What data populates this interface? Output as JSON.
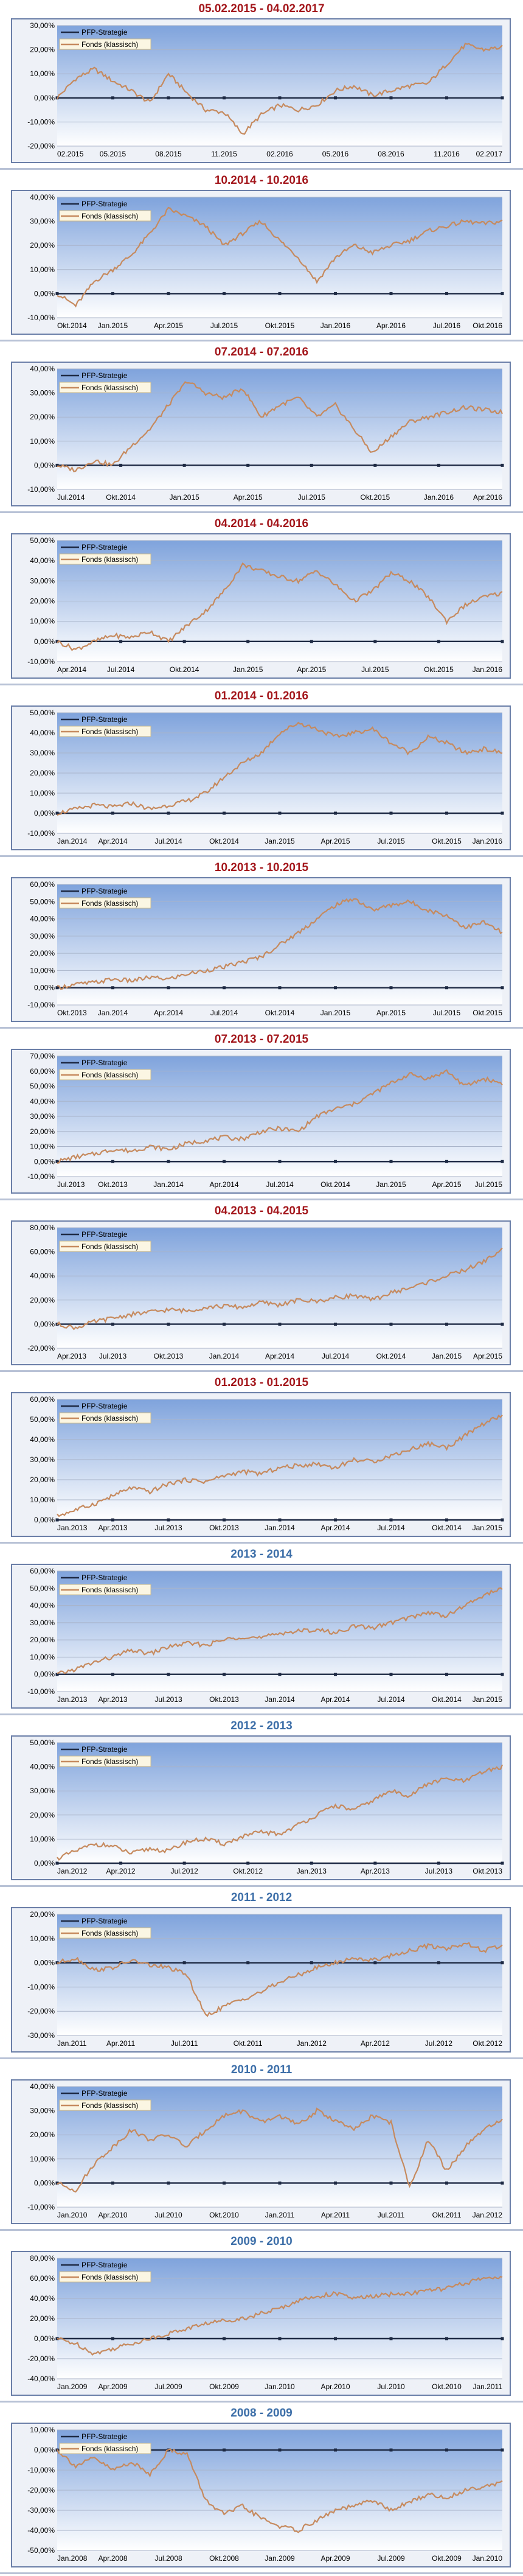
{
  "colors": {
    "title_red": "#a3161b",
    "title_blue": "#3c6ea8",
    "strategy_line": "#1e2a44",
    "fund_line": "#c68a5e",
    "axis_line": "#000000",
    "plot_top": "#7fa3dc",
    "plot_bottom": "#ffffff",
    "legend_bg": "#fbf6e3"
  },
  "chart_data": [
    {
      "type": "line",
      "title": "05.02.2015 - 04.02.2017",
      "title_color": "red",
      "x_ticks": [
        "02.2015",
        "05.2015",
        "08.2015",
        "11.2015",
        "02.2016",
        "05.2016",
        "08.2016",
        "11.2016",
        "02.2017"
      ],
      "y_ticks": [
        "-20,00%",
        "-10,00%",
        "0,00%",
        "10,00%",
        "20,00%",
        "30,00%"
      ],
      "ylim": [
        -20,
        30
      ],
      "grid": true,
      "legend_position": "top-left",
      "series": [
        {
          "name": "PFP-Strategie",
          "values": [
            0,
            0,
            0,
            0,
            0,
            0,
            0,
            0,
            0
          ]
        },
        {
          "name": "Fonds (klassisch)",
          "values": [
            0,
            8,
            12,
            7,
            3,
            -2,
            10,
            2,
            -5,
            -6,
            -15,
            -7,
            -3,
            -5,
            -3,
            3,
            5,
            1,
            3,
            5,
            6,
            14,
            22,
            20,
            21
          ]
        }
      ]
    },
    {
      "type": "line",
      "title": "10.2014 - 10.2016",
      "title_color": "red",
      "x_ticks": [
        "Okt.2014",
        "Jan.2015",
        "Apr.2015",
        "Jul.2015",
        "Okt.2015",
        "Jan.2016",
        "Apr.2016",
        "Jul.2016",
        "Okt.2016"
      ],
      "y_ticks": [
        "-10,00%",
        "0,00%",
        "10,00%",
        "20,00%",
        "30,00%",
        "40,00%"
      ],
      "ylim": [
        -10,
        40
      ],
      "grid": true,
      "legend_position": "top-left",
      "series": [
        {
          "name": "PFP-Strategie",
          "values": [
            0,
            0,
            0,
            0,
            0,
            0,
            0,
            0,
            0
          ]
        },
        {
          "name": "Fonds (klassisch)",
          "values": [
            0,
            -5,
            5,
            10,
            16,
            25,
            35,
            32,
            28,
            20,
            25,
            30,
            22,
            15,
            5,
            15,
            20,
            17,
            20,
            22,
            26,
            28,
            30,
            29,
            30
          ]
        }
      ]
    },
    {
      "type": "line",
      "title": "07.2014 - 07.2016",
      "title_color": "red",
      "x_ticks": [
        "Jul.2014",
        "Okt.2014",
        "Jan.2015",
        "Apr.2015",
        "Jul.2015",
        "Okt.2015",
        "Jan.2016",
        "Apr.2016"
      ],
      "y_ticks": [
        "-10,00%",
        "0,00%",
        "10,00%",
        "20,00%",
        "30,00%",
        "40,00%"
      ],
      "ylim": [
        -10,
        40
      ],
      "grid": true,
      "legend_position": "top-left",
      "series": [
        {
          "name": "PFP-Strategie",
          "values": [
            0,
            0,
            0,
            0,
            0,
            0,
            0,
            0
          ]
        },
        {
          "name": "Fonds (klassisch)",
          "values": [
            0,
            -2,
            2,
            0,
            8,
            15,
            25,
            35,
            30,
            28,
            32,
            20,
            25,
            28,
            20,
            25,
            15,
            5,
            12,
            18,
            20,
            22,
            24,
            23,
            22
          ]
        }
      ]
    },
    {
      "type": "line",
      "title": "04.2014 - 04.2016",
      "title_color": "red",
      "x_ticks": [
        "Apr.2014",
        "Jul.2014",
        "Okt.2014",
        "Jan.2015",
        "Apr.2015",
        "Jul.2015",
        "Okt.2015",
        "Jan.2016"
      ],
      "y_ticks": [
        "-10,00%",
        "0,00%",
        "10,00%",
        "20,00%",
        "30,00%",
        "40,00%",
        "50,00%"
      ],
      "ylim": [
        -10,
        50
      ],
      "grid": true,
      "legend_position": "top-left",
      "series": [
        {
          "name": "PFP-Strategie",
          "values": [
            0,
            0,
            0,
            0,
            0,
            0,
            0,
            0
          ]
        },
        {
          "name": "Fonds (klassisch)",
          "values": [
            0,
            -4,
            0,
            3,
            2,
            5,
            0,
            8,
            15,
            25,
            38,
            35,
            32,
            30,
            35,
            28,
            20,
            25,
            34,
            30,
            22,
            10,
            18,
            22,
            24
          ]
        }
      ]
    },
    {
      "type": "line",
      "title": "01.2014 - 01.2016",
      "title_color": "red",
      "x_ticks": [
        "Jan.2014",
        "Apr.2014",
        "Jul.2014",
        "Okt.2014",
        "Jan.2015",
        "Apr.2015",
        "Jul.2015",
        "Okt.2015",
        "Jan.2016"
      ],
      "y_ticks": [
        "-10,00%",
        "0,00%",
        "10,00%",
        "20,00%",
        "30,00%",
        "40,00%",
        "50,00%"
      ],
      "ylim": [
        -10,
        50
      ],
      "grid": true,
      "legend_position": "top-left",
      "series": [
        {
          "name": "PFP-Strategie",
          "values": [
            0,
            0,
            0,
            0,
            0,
            0,
            0,
            0,
            0
          ]
        },
        {
          "name": "Fonds (klassisch)",
          "values": [
            0,
            2,
            4,
            3,
            5,
            2,
            4,
            6,
            10,
            18,
            25,
            30,
            40,
            45,
            42,
            38,
            40,
            42,
            35,
            30,
            38,
            35,
            30,
            32,
            30
          ]
        }
      ]
    },
    {
      "type": "line",
      "title": "10.2013 - 10.2015",
      "title_color": "red",
      "x_ticks": [
        "Okt.2013",
        "Jan.2014",
        "Apr.2014",
        "Jul.2014",
        "Okt.2014",
        "Jan.2015",
        "Apr.2015",
        "Jul.2015",
        "Okt.2015"
      ],
      "y_ticks": [
        "-10,00%",
        "0,00%",
        "10,00%",
        "20,00%",
        "30,00%",
        "40,00%",
        "50,00%",
        "60,00%"
      ],
      "ylim": [
        -10,
        60
      ],
      "grid": true,
      "legend_position": "top-left",
      "series": [
        {
          "name": "PFP-Strategie",
          "values": [
            0,
            0,
            0,
            0,
            0,
            0,
            0,
            0,
            0
          ]
        },
        {
          "name": "Fonds (klassisch)",
          "values": [
            0,
            2,
            3,
            5,
            4,
            6,
            5,
            8,
            10,
            12,
            15,
            18,
            25,
            32,
            40,
            48,
            52,
            45,
            48,
            50,
            45,
            42,
            35,
            38,
            32
          ]
        }
      ]
    },
    {
      "type": "line",
      "title": "07.2013 - 07.2015",
      "title_color": "red",
      "x_ticks": [
        "Jul.2013",
        "Okt.2013",
        "Jan.2014",
        "Apr.2014",
        "Jul.2014",
        "Okt.2014",
        "Jan.2015",
        "Apr.2015",
        "Jul.2015"
      ],
      "y_ticks": [
        "-10,00%",
        "0,00%",
        "10,00%",
        "20,00%",
        "30,00%",
        "40,00%",
        "50,00%",
        "60,00%",
        "70,00%"
      ],
      "ylim": [
        -10,
        70
      ],
      "grid": true,
      "legend_position": "top-left",
      "series": [
        {
          "name": "PFP-Strategie",
          "values": [
            0,
            0,
            0,
            0,
            0,
            0,
            0,
            0,
            0
          ]
        },
        {
          "name": "Fonds (klassisch)",
          "values": [
            0,
            3,
            5,
            8,
            7,
            10,
            8,
            12,
            14,
            16,
            15,
            20,
            22,
            20,
            30,
            35,
            38,
            45,
            52,
            58,
            55,
            60,
            50,
            55,
            52
          ]
        }
      ]
    },
    {
      "type": "line",
      "title": "04.2013 - 04.2015",
      "title_color": "red",
      "x_ticks": [
        "Apr.2013",
        "Jul.2013",
        "Okt.2013",
        "Jan.2014",
        "Apr.2014",
        "Jul.2014",
        "Okt.2014",
        "Jan.2015",
        "Apr.2015"
      ],
      "y_ticks": [
        "-20,00%",
        "0,00%",
        "20,00%",
        "40,00%",
        "60,00%",
        "80,00%"
      ],
      "ylim": [
        -20,
        80
      ],
      "grid": true,
      "legend_position": "top-left",
      "series": [
        {
          "name": "PFP-Strategie",
          "values": [
            0,
            0,
            0,
            0,
            0,
            0,
            0,
            0,
            0
          ]
        },
        {
          "name": "Fonds (klassisch)",
          "values": [
            0,
            -3,
            2,
            5,
            8,
            10,
            12,
            11,
            14,
            15,
            14,
            18,
            16,
            20,
            19,
            22,
            24,
            20,
            26,
            30,
            35,
            40,
            45,
            52,
            62
          ]
        }
      ]
    },
    {
      "type": "line",
      "title": "01.2013 - 01.2015",
      "title_color": "red",
      "x_ticks": [
        "Jan.2013",
        "Apr.2013",
        "Jul.2013",
        "Okt.2013",
        "Jan.2014",
        "Apr.2014",
        "Jul.2014",
        "Okt.2014",
        "Jan.2015"
      ],
      "y_ticks": [
        "0,00%",
        "10,00%",
        "20,00%",
        "30,00%",
        "40,00%",
        "50,00%",
        "60,00%"
      ],
      "ylim": [
        0,
        60
      ],
      "grid": true,
      "legend_position": "top-left",
      "series": [
        {
          "name": "PFP-Strategie",
          "values": [
            0,
            0,
            0,
            0,
            0,
            0,
            0,
            0,
            0
          ]
        },
        {
          "name": "Fonds (klassisch)",
          "values": [
            2,
            5,
            8,
            12,
            16,
            14,
            18,
            20,
            19,
            22,
            24,
            23,
            26,
            27,
            28,
            26,
            30,
            29,
            32,
            35,
            38,
            36,
            42,
            48,
            52
          ]
        }
      ]
    },
    {
      "type": "line",
      "title": "2013 - 2014",
      "title_color": "blue",
      "x_ticks": [
        "Jan.2013",
        "Apr.2013",
        "Jul.2013",
        "Okt.2013",
        "Jan.2014",
        "Apr.2014",
        "Jul.2014",
        "Okt.2014",
        "Jan.2015"
      ],
      "y_ticks": [
        "-10,00%",
        "0,00%",
        "10,00%",
        "20,00%",
        "30,00%",
        "40,00%",
        "50,00%",
        "60,00%"
      ],
      "ylim": [
        -10,
        60
      ],
      "grid": true,
      "legend_position": "top-left",
      "series": [
        {
          "name": "PFP-Strategie",
          "values": [
            0,
            0,
            0,
            0,
            0,
            0,
            0,
            0,
            0
          ]
        },
        {
          "name": "Fonds (klassisch)",
          "values": [
            0,
            3,
            7,
            10,
            14,
            12,
            16,
            18,
            17,
            20,
            22,
            21,
            24,
            25,
            26,
            24,
            28,
            27,
            30,
            33,
            36,
            34,
            40,
            46,
            50
          ]
        }
      ]
    },
    {
      "type": "line",
      "title": "2012 - 2013",
      "title_color": "blue",
      "x_ticks": [
        "Jan.2012",
        "Apr.2012",
        "Jul.2012",
        "Okt.2012",
        "Jan.2013",
        "Apr.2013",
        "Jul.2013",
        "Okt.2013"
      ],
      "y_ticks": [
        "0,00%",
        "10,00%",
        "20,00%",
        "30,00%",
        "40,00%",
        "50,00%"
      ],
      "ylim": [
        0,
        50
      ],
      "grid": true,
      "legend_position": "top-left",
      "series": [
        {
          "name": "PFP-Strategie",
          "values": [
            0,
            0,
            0,
            0,
            0,
            0,
            0,
            0
          ]
        },
        {
          "name": "Fonds (klassisch)",
          "values": [
            2,
            5,
            8,
            7,
            4,
            6,
            5,
            9,
            10,
            8,
            11,
            13,
            12,
            16,
            20,
            24,
            22,
            26,
            30,
            28,
            33,
            35,
            34,
            38,
            40
          ]
        }
      ]
    },
    {
      "type": "line",
      "title": "2011 - 2012",
      "title_color": "blue",
      "x_ticks": [
        "Jan.2011",
        "Apr.2011",
        "Jul.2011",
        "Okt.2011",
        "Jan.2012",
        "Apr.2012",
        "Jul.2012",
        "Okt.2012"
      ],
      "y_ticks": [
        "-30,00%",
        "-20,00%",
        "-10,00%",
        "0,00%",
        "10,00%",
        "20,00%"
      ],
      "ylim": [
        -30,
        20
      ],
      "grid": true,
      "legend_position": "top-left",
      "series": [
        {
          "name": "PFP-Strategie",
          "values": [
            0,
            0,
            0,
            0,
            0,
            0,
            0,
            0
          ]
        },
        {
          "name": "Fonds (klassisch)",
          "values": [
            0,
            2,
            -3,
            -2,
            1,
            -1,
            -2,
            -5,
            -22,
            -18,
            -15,
            -12,
            -8,
            -5,
            -2,
            0,
            2,
            1,
            3,
            5,
            7,
            6,
            8,
            5,
            7
          ]
        }
      ]
    },
    {
      "type": "line",
      "title": "2010 - 2011",
      "title_color": "blue",
      "x_ticks": [
        "Jan.2010",
        "Apr.2010",
        "Jul.2010",
        "Okt.2010",
        "Jan.2011",
        "Apr.2011",
        "Jul.2011",
        "Okt.2011",
        "Jan.2012"
      ],
      "y_ticks": [
        "-10,00%",
        "0,00%",
        "10,00%",
        "20,00%",
        "30,00%",
        "40,00%"
      ],
      "ylim": [
        -10,
        40
      ],
      "grid": true,
      "legend_position": "top-left",
      "series": [
        {
          "name": "PFP-Strategie",
          "values": [
            0,
            0,
            0,
            0,
            0,
            0,
            0,
            0,
            0
          ]
        },
        {
          "name": "Fonds (klassisch)",
          "values": [
            0,
            -3,
            8,
            15,
            22,
            18,
            20,
            15,
            22,
            28,
            30,
            25,
            28,
            24,
            30,
            26,
            22,
            28,
            25,
            -2,
            18,
            5,
            15,
            22,
            26
          ]
        }
      ]
    },
    {
      "type": "line",
      "title": "2009 - 2010",
      "title_color": "blue",
      "x_ticks": [
        "Jan.2009",
        "Apr.2009",
        "Jul.2009",
        "Okt.2009",
        "Jan.2010",
        "Apr.2010",
        "Jul.2010",
        "Okt.2010",
        "Jan.2011"
      ],
      "y_ticks": [
        "-40,00%",
        "-20,00%",
        "0,00%",
        "20,00%",
        "40,00%",
        "60,00%",
        "80,00%"
      ],
      "ylim": [
        -40,
        80
      ],
      "grid": true,
      "legend_position": "top-left",
      "series": [
        {
          "name": "PFP-Strategie",
          "values": [
            0,
            0,
            0,
            0,
            0,
            0,
            0,
            0,
            0
          ]
        },
        {
          "name": "Fonds (klassisch)",
          "values": [
            0,
            -5,
            -15,
            -10,
            -5,
            0,
            5,
            10,
            15,
            18,
            20,
            25,
            30,
            38,
            42,
            45,
            40,
            42,
            44,
            45,
            48,
            50,
            55,
            60,
            62
          ]
        }
      ]
    },
    {
      "type": "line",
      "title": "2008 - 2009",
      "title_color": "blue",
      "x_ticks": [
        "Jan.2008",
        "Apr.2008",
        "Jul.2008",
        "Okt.2008",
        "Jan.2009",
        "Apr.2009",
        "Jul.2009",
        "Okt.2009",
        "Jan.2010"
      ],
      "y_ticks": [
        "-50,00%",
        "-40,00%",
        "-30,00%",
        "-20,00%",
        "-10,00%",
        "0,00%",
        "10,00%"
      ],
      "ylim": [
        -50,
        10
      ],
      "grid": true,
      "legend_position": "top-left",
      "series": [
        {
          "name": "PFP-Strategie",
          "values": [
            0,
            0,
            0,
            0,
            0,
            0,
            0,
            0,
            0
          ]
        },
        {
          "name": "Fonds (klassisch)",
          "values": [
            0,
            -8,
            -4,
            -10,
            -6,
            -12,
            0,
            -2,
            -25,
            -32,
            -28,
            -34,
            -38,
            -40,
            -35,
            -30,
            -28,
            -25,
            -30,
            -26,
            -22,
            -24,
            -20,
            -18,
            -16
          ]
        }
      ]
    }
  ]
}
